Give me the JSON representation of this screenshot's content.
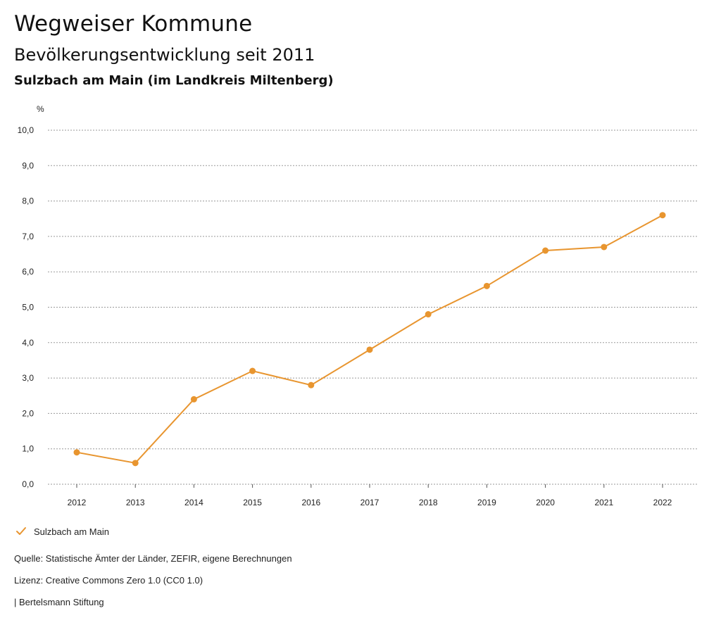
{
  "header": {
    "title": "Wegweiser Kommune",
    "subtitle": "Bevölkerungsentwicklung seit 2011",
    "region": "Sulzbach am Main (im Landkreis Miltenberg)"
  },
  "chart_data": {
    "type": "line",
    "unit_label": "%",
    "x": [
      "2012",
      "2013",
      "2014",
      "2015",
      "2016",
      "2017",
      "2018",
      "2019",
      "2020",
      "2021",
      "2022"
    ],
    "series": [
      {
        "name": "Sulzbach am Main",
        "values": [
          0.9,
          0.6,
          2.4,
          3.2,
          2.8,
          3.8,
          4.8,
          5.6,
          6.6,
          6.7,
          7.6
        ]
      }
    ],
    "y_ticks": [
      "0,0",
      "1,0",
      "2,0",
      "3,0",
      "4,0",
      "5,0",
      "6,0",
      "7,0",
      "8,0",
      "9,0",
      "10,0"
    ],
    "ylim": [
      0,
      10
    ],
    "grid": true,
    "legend_position": "bottom-left",
    "series_color": "#e8952f"
  },
  "footer": {
    "source": "Quelle: Statistische Ämter der Länder, ZEFIR, eigene Berechnungen",
    "license": "Lizenz: Creative Commons Zero 1.0 (CC0 1.0)",
    "publisher": "| Bertelsmann Stiftung"
  }
}
